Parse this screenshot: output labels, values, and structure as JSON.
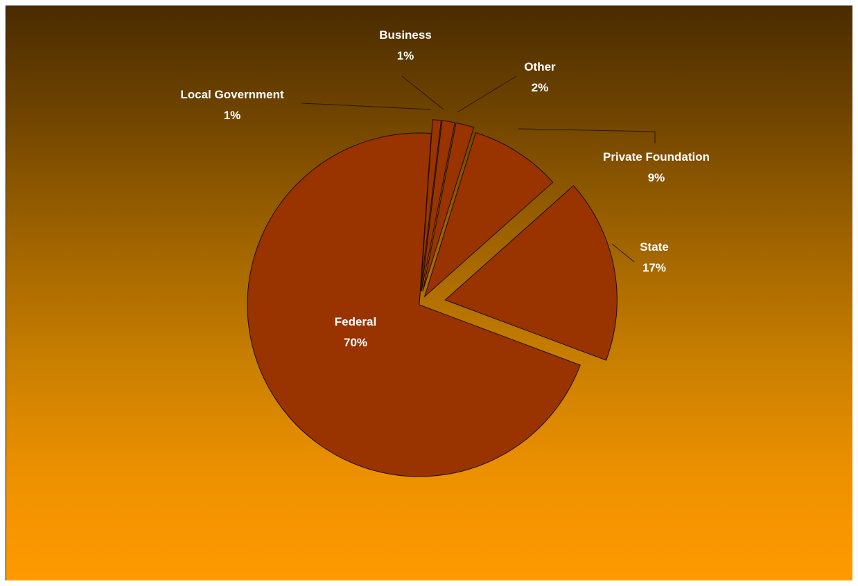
{
  "chart_data": {
    "type": "pie",
    "title": "",
    "slices": [
      {
        "label": "Federal",
        "percent_label": "70%",
        "value": 70
      },
      {
        "label": "State",
        "percent_label": "17%",
        "value": 17,
        "exploded": true
      },
      {
        "label": "Private Foundation",
        "percent_label": "9%",
        "value": 9
      },
      {
        "label": "Other",
        "percent_label": "2%",
        "value": 2
      },
      {
        "label": "Business",
        "percent_label": "1%",
        "value": 1
      },
      {
        "label": "Local Government",
        "percent_label": "1%",
        "value": 1
      }
    ],
    "legend": "none",
    "colors": {
      "slice_fill": "#993300",
      "slice_stroke": "#1a0a00",
      "label_text": "#ffffff",
      "background_top": "#4a2c00",
      "background_bottom": "#ff9a00"
    }
  }
}
